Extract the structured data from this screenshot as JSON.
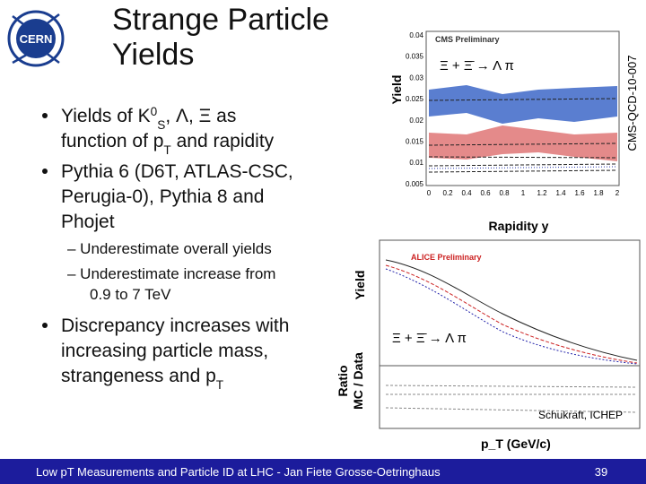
{
  "slide": {
    "title": [
      "Strange Particle",
      "Yields"
    ],
    "bullets": [
      [
        [
          {
            "text": "Yields of K"
          },
          {
            "sup": "0"
          },
          {
            "sub": "S"
          },
          {
            "text": ", Λ, Ξ as"
          }
        ],
        [
          {
            "text": "function of p"
          },
          {
            "sub": "T"
          },
          {
            "text": " and rapidity"
          }
        ]
      ],
      [
        [
          {
            "text": "Pythia 6 (D6T, ATLAS-CSC,"
          }
        ],
        [
          {
            "text": "Perugia-0), Pythia 8 and"
          }
        ],
        [
          {
            "text": "Phojet"
          }
        ]
      ],
      [
        [
          {
            "text": "– Underestimate overall yields"
          }
        ],
        [
          {
            "text": "– Underestimate increase from"
          }
        ],
        [
          {
            "text": "0.9 to 7 TeV"
          }
        ]
      ],
      [
        [
          {
            "text": "Discrepancy increases with"
          }
        ],
        [
          {
            "text": "increasing particle mass,"
          }
        ],
        [
          {
            "text": "strangeness and p"
          },
          {
            "sub": "T"
          }
        ]
      ]
    ],
    "top_plot": {
      "y_label": "Yield",
      "x_label": "Rapidity y",
      "side_label": "CMS-QCD-10-007",
      "legend_title": "CMS Preliminary",
      "reaction": "Ξ + Ξ̄ → Λ π",
      "yticks": [
        "0.04",
        "0.035",
        "0.03",
        "0.025",
        "0.02",
        "0.015",
        "0.01",
        "0.005"
      ],
      "xticks": [
        "0",
        "0.2",
        "0.4",
        "0.6",
        "0.8",
        "1",
        "1.2",
        "1.4",
        "1.6",
        "1.8",
        "2"
      ]
    },
    "bottom_plot": {
      "y_label": "Yield",
      "ratio_label": [
        "Ratio",
        "MC / Data"
      ],
      "legend_title": "ALICE Preliminary",
      "reaction": "Ξ + Ξ̄ → Λ π",
      "x_label": "p_T (GeV/c)",
      "credit": "Schukraft, ICHEP"
    },
    "footer": {
      "text": "Low pT Measurements and Particle ID at LHC - Jan Fiete Grosse-Oetringhaus",
      "page": "39"
    }
  }
}
